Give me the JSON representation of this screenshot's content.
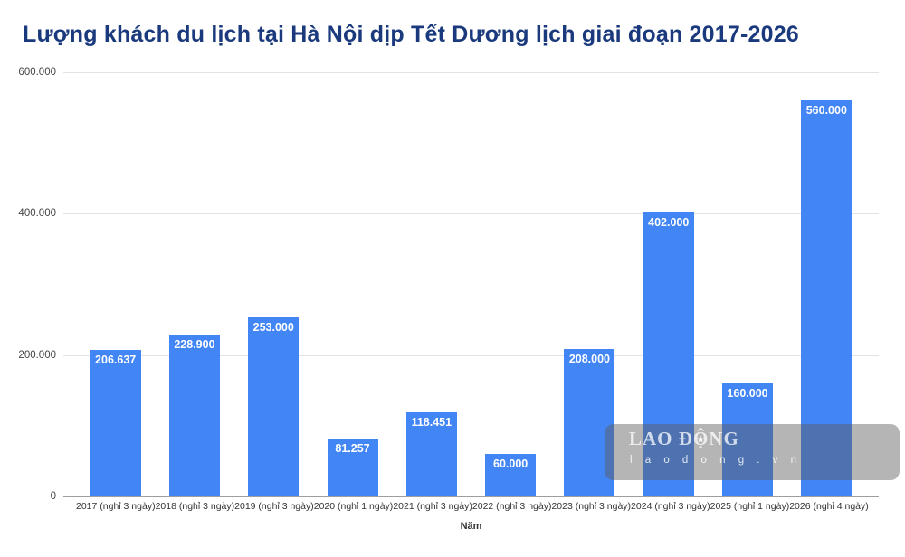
{
  "title": {
    "text": "Lượng khách du lịch tại Hà Nội dịp Tết Dương lịch giai đoạn 2017-2026",
    "color": "#1a3a7d"
  },
  "chart_data": {
    "type": "bar",
    "title": "Lượng khách du lịch tại Hà Nội dịp Tết Dương lịch giai đoạn 2017-2026",
    "xlabel": "Năm",
    "ylabel": "",
    "categories": [
      "2017 (nghỉ 3 ngày)",
      "2018 (nghỉ 3 ngày)",
      "2019 (nghỉ 3 ngày)",
      "2020 (nghỉ 1 ngày)",
      "2021 (nghỉ 3 ngày)",
      "2022 (nghỉ 3 ngày)",
      "2023 (nghỉ 3 ngày)",
      "2024 (nghỉ 3 ngày)",
      "2025 (nghỉ 1 ngày)",
      "2026 (nghỉ 4 ngày)"
    ],
    "values": [
      206637,
      228900,
      253000,
      81257,
      118451,
      60000,
      208000,
      402000,
      160000,
      560000
    ],
    "value_labels": [
      "206.637",
      "228.900",
      "253.000",
      "81.257",
      "118.451",
      "60.000",
      "208.000",
      "402.000",
      "160.000",
      "560.000"
    ],
    "y_ticks": [
      {
        "value": 600000,
        "label": "600.000"
      },
      {
        "value": 400000,
        "label": "400.000"
      },
      {
        "value": 200000,
        "label": "200.000"
      },
      {
        "value": 0,
        "label": "0"
      }
    ],
    "ylim": [
      0,
      600000
    ],
    "grid": true,
    "legend": "none",
    "bar_color": "#4285f4"
  },
  "watermark": {
    "brand_left": "LAO Đ",
    "brand_o": "Ộ",
    "brand_right": "NG",
    "star": "★",
    "site": "l a o d o n g . v n"
  }
}
